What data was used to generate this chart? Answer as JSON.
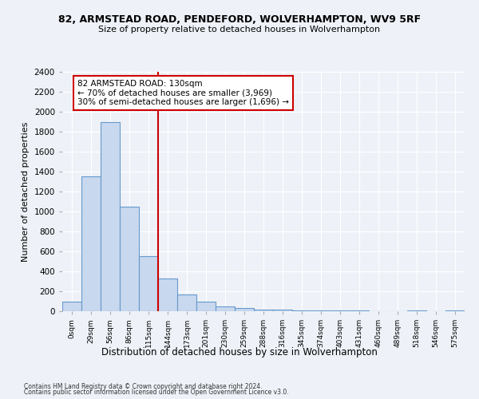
{
  "title1": "82, ARMSTEAD ROAD, PENDEFORD, WOLVERHAMPTON, WV9 5RF",
  "title2": "Size of property relative to detached houses in Wolverhampton",
  "xlabel": "Distribution of detached houses by size in Wolverhampton",
  "ylabel": "Number of detached properties",
  "footnote1": "Contains HM Land Registry data © Crown copyright and database right 2024.",
  "footnote2": "Contains public sector information licensed under the Open Government Licence v3.0.",
  "bin_labels": [
    "0sqm",
    "29sqm",
    "56sqm",
    "86sqm",
    "115sqm",
    "144sqm",
    "173sqm",
    "201sqm",
    "230sqm",
    "259sqm",
    "288sqm",
    "316sqm",
    "345sqm",
    "374sqm",
    "403sqm",
    "431sqm",
    "460sqm",
    "489sqm",
    "518sqm",
    "546sqm",
    "575sqm"
  ],
  "bar_values": [
    100,
    1350,
    1900,
    1050,
    550,
    330,
    165,
    100,
    50,
    30,
    20,
    15,
    5,
    5,
    5,
    5,
    0,
    0,
    5,
    0,
    5
  ],
  "bar_color": "#c8d8ee",
  "bar_edge_color": "#6699cc",
  "vline_x": 4.5,
  "vline_color": "#cc0000",
  "ylim": [
    0,
    2400
  ],
  "yticks": [
    0,
    200,
    400,
    600,
    800,
    1000,
    1200,
    1400,
    1600,
    1800,
    2000,
    2200,
    2400
  ],
  "annotation_title": "82 ARMSTEAD ROAD: 130sqm",
  "annotation_line1": "← 70% of detached houses are smaller (3,969)",
  "annotation_line2": "30% of semi-detached houses are larger (1,696) →",
  "annotation_box_color": "#ffffff",
  "annotation_box_edge": "#cc0000",
  "bg_color": "#eef2f8",
  "grid_color": "#ffffff",
  "plot_bg": "#eef2f8"
}
